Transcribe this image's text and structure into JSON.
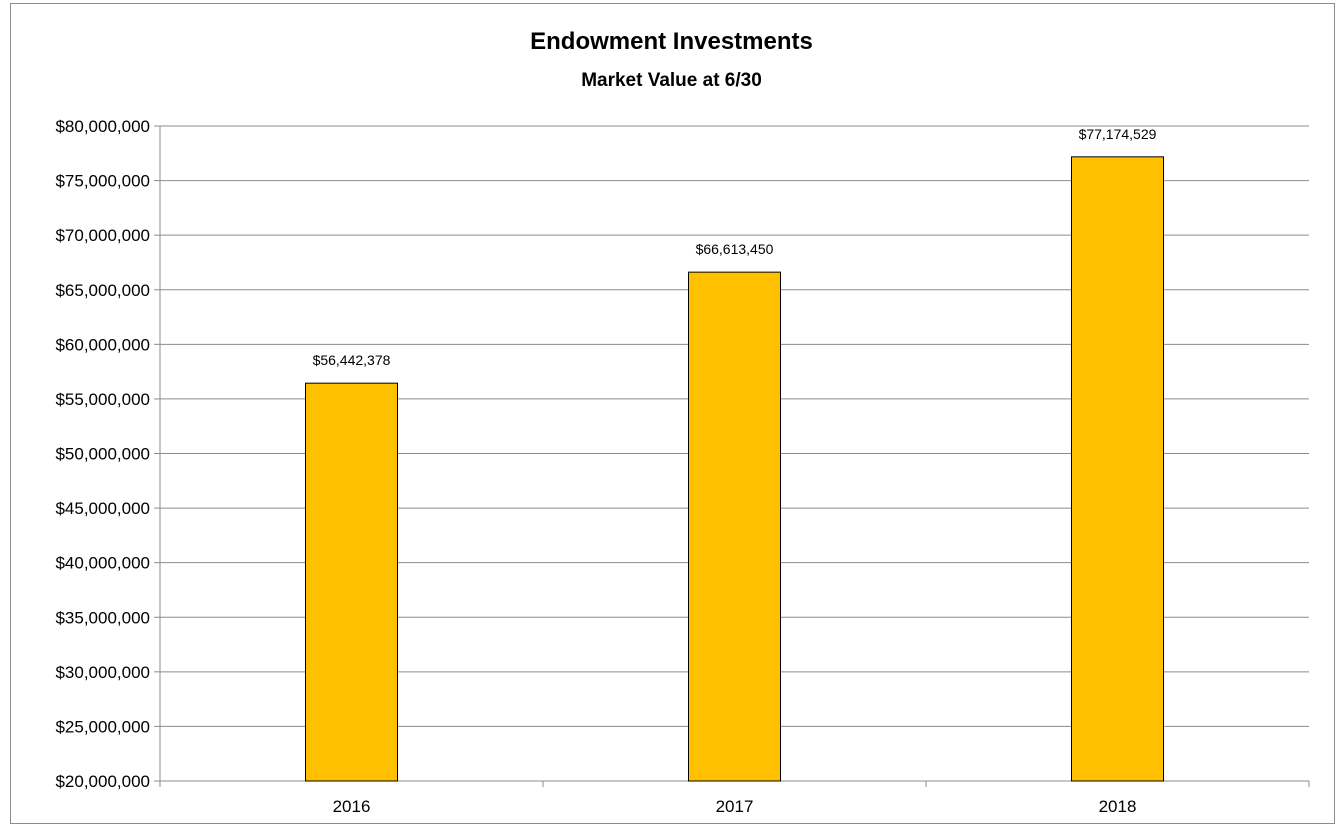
{
  "chart_data": {
    "type": "bar",
    "title": "Endowment  Investments",
    "subtitle": "Market Value at 6/30",
    "categories": [
      "2016",
      "2017",
      "2018"
    ],
    "values": [
      56442378,
      66613450,
      77174529
    ],
    "value_labels": [
      "$56,442,378",
      "$66,613,450",
      "$77,174,529"
    ],
    "ylim": [
      20000000,
      80000000
    ],
    "y_ticks": [
      20000000,
      25000000,
      30000000,
      35000000,
      40000000,
      45000000,
      50000000,
      55000000,
      60000000,
      65000000,
      70000000,
      75000000,
      80000000
    ],
    "y_tick_labels": [
      "$20,000,000",
      "$25,000,000",
      "$30,000,000",
      "$35,000,000",
      "$40,000,000",
      "$45,000,000",
      "$50,000,000",
      "$55,000,000",
      "$60,000,000",
      "$65,000,000",
      "$70,000,000",
      "$75,000,000",
      "$80,000,000"
    ],
    "grid": true,
    "legend": "none",
    "bar_color": "#FFC000",
    "bar_edge_color": "#000000"
  }
}
